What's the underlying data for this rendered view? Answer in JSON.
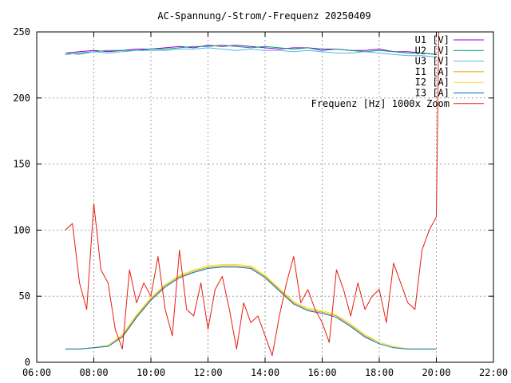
{
  "chart_data": {
    "type": "line",
    "title": "AC-Spannung/-Strom/-Frequenz 20250409",
    "xlabel": "",
    "ylabel": "",
    "xlim": [
      "06:00",
      "22:00"
    ],
    "ylim": [
      0,
      250
    ],
    "x_ticks": [
      "06:00",
      "08:00",
      "10:00",
      "12:00",
      "14:00",
      "16:00",
      "18:00",
      "20:00",
      "22:00"
    ],
    "y_ticks": [
      "0",
      "50",
      "100",
      "150",
      "200",
      "250"
    ],
    "grid": true,
    "legend_position": "top-right",
    "series": [
      {
        "name": "U1 [V]",
        "color": "#9400d3",
        "x": [
          "07:00",
          "07:30",
          "08:00",
          "08:30",
          "09:00",
          "09:30",
          "10:00",
          "10:30",
          "11:00",
          "11:30",
          "12:00",
          "12:30",
          "13:00",
          "13:30",
          "14:00",
          "14:30",
          "15:00",
          "15:30",
          "16:00",
          "16:30",
          "17:00",
          "17:30",
          "18:00",
          "18:30",
          "19:00",
          "19:30",
          "20:00"
        ],
        "values": [
          234,
          235,
          236,
          235,
          236,
          237,
          237,
          238,
          239,
          238,
          240,
          239,
          240,
          239,
          238,
          237,
          238,
          238,
          237,
          237,
          236,
          236,
          237,
          235,
          235,
          234,
          233
        ]
      },
      {
        "name": "U2 [V]",
        "color": "#009e73",
        "x": [
          "07:00",
          "07:30",
          "08:00",
          "08:30",
          "09:00",
          "09:30",
          "10:00",
          "10:30",
          "11:00",
          "11:30",
          "12:00",
          "12:30",
          "13:00",
          "13:30",
          "14:00",
          "14:30",
          "15:00",
          "15:30",
          "16:00",
          "16:30",
          "17:00",
          "17:30",
          "18:00",
          "18:30",
          "19:00",
          "19:30",
          "20:00"
        ],
        "values": [
          233,
          234,
          235,
          236,
          236,
          236,
          237,
          237,
          238,
          239,
          239,
          240,
          239,
          238,
          239,
          238,
          237,
          238,
          236,
          237,
          236,
          235,
          236,
          235,
          234,
          234,
          233
        ]
      },
      {
        "name": "U3 [V]",
        "color": "#56b4e9",
        "x": [
          "07:00",
          "07:30",
          "08:00",
          "08:30",
          "09:00",
          "09:30",
          "10:00",
          "10:30",
          "11:00",
          "11:30",
          "12:00",
          "12:30",
          "13:00",
          "13:30",
          "14:00",
          "14:30",
          "15:00",
          "15:30",
          "16:00",
          "16:30",
          "17:00",
          "17:30",
          "18:00",
          "18:30",
          "19:00",
          "19:30",
          "20:00"
        ],
        "values": [
          234,
          233,
          235,
          234,
          235,
          236,
          236,
          236,
          237,
          237,
          238,
          237,
          236,
          237,
          236,
          236,
          235,
          236,
          235,
          234,
          234,
          235,
          234,
          233,
          232,
          232,
          231
        ]
      },
      {
        "name": "I1 [A]",
        "color": "#e69f00",
        "x": [
          "07:00",
          "07:30",
          "08:00",
          "08:30",
          "09:00",
          "09:30",
          "10:00",
          "10:30",
          "11:00",
          "11:30",
          "12:00",
          "12:30",
          "13:00",
          "13:30",
          "14:00",
          "14:30",
          "15:00",
          "15:30",
          "16:00",
          "16:30",
          "17:00",
          "17:30",
          "18:00",
          "18:30",
          "19:00",
          "19:30",
          "20:00"
        ],
        "values": [
          10,
          10,
          11,
          13,
          20,
          35,
          48,
          58,
          65,
          69,
          72,
          73,
          73,
          72,
          65,
          55,
          45,
          40,
          38,
          35,
          28,
          20,
          15,
          12,
          10,
          10,
          10
        ]
      },
      {
        "name": "I2 [A]",
        "color": "#f0e442",
        "x": [
          "07:00",
          "07:30",
          "08:00",
          "08:30",
          "09:00",
          "09:30",
          "10:00",
          "10:30",
          "11:00",
          "11:30",
          "12:00",
          "12:30",
          "13:00",
          "13:30",
          "14:00",
          "14:30",
          "15:00",
          "15:30",
          "16:00",
          "16:30",
          "17:00",
          "17:30",
          "18:00",
          "18:30",
          "19:00",
          "19:30",
          "20:00"
        ],
        "values": [
          10,
          10,
          11,
          13,
          21,
          36,
          49,
          59,
          66,
          70,
          73,
          74,
          74,
          73,
          66,
          56,
          46,
          41,
          39,
          36,
          29,
          21,
          15,
          12,
          10,
          10,
          10
        ]
      },
      {
        "name": "I3 [A]",
        "color": "#0072b2",
        "x": [
          "07:00",
          "07:30",
          "08:00",
          "08:30",
          "09:00",
          "09:30",
          "10:00",
          "10:30",
          "11:00",
          "11:30",
          "12:00",
          "12:30",
          "13:00",
          "13:30",
          "14:00",
          "14:30",
          "15:00",
          "15:30",
          "16:00",
          "16:30",
          "17:00",
          "17:30",
          "18:00",
          "18:30",
          "19:00",
          "19:30",
          "20:00"
        ],
        "values": [
          10,
          10,
          11,
          12,
          19,
          34,
          47,
          57,
          64,
          68,
          71,
          72,
          72,
          71,
          64,
          54,
          44,
          39,
          37,
          34,
          27,
          19,
          14,
          11,
          10,
          10,
          10
        ]
      },
      {
        "name": "Frequenz [Hz] 1000x Zoom",
        "color": "#e51e10",
        "x": [
          "07:00",
          "07:15",
          "07:30",
          "07:45",
          "08:00",
          "08:15",
          "08:30",
          "08:45",
          "09:00",
          "09:15",
          "09:30",
          "09:45",
          "10:00",
          "10:15",
          "10:30",
          "10:45",
          "11:00",
          "11:15",
          "11:30",
          "11:45",
          "12:00",
          "12:15",
          "12:30",
          "12:45",
          "13:00",
          "13:15",
          "13:30",
          "13:45",
          "14:00",
          "14:15",
          "14:30",
          "14:45",
          "15:00",
          "15:15",
          "15:30",
          "15:45",
          "16:00",
          "16:15",
          "16:30",
          "16:45",
          "17:00",
          "17:15",
          "17:30",
          "17:45",
          "18:00",
          "18:15",
          "18:30",
          "18:45",
          "19:00",
          "19:15",
          "19:30",
          "19:45",
          "20:00",
          "20:05"
        ],
        "values": [
          100,
          105,
          60,
          40,
          120,
          70,
          60,
          25,
          10,
          70,
          45,
          60,
          50,
          80,
          40,
          20,
          85,
          40,
          35,
          60,
          25,
          55,
          65,
          40,
          10,
          45,
          30,
          35,
          20,
          5,
          35,
          60,
          80,
          45,
          55,
          40,
          30,
          15,
          70,
          55,
          35,
          60,
          40,
          50,
          55,
          30,
          75,
          60,
          45,
          40,
          85,
          100,
          110,
          250
        ]
      }
    ]
  }
}
